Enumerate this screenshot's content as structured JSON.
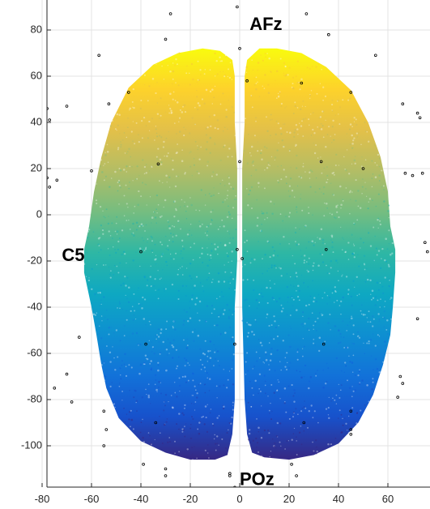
{
  "chart_data": {
    "type": "scatter",
    "title": "",
    "xlabel": "",
    "ylabel": "",
    "xlim": [
      -88,
      80
    ],
    "ylim": [
      -120,
      90
    ],
    "x_ticks": [
      "-80",
      "-60",
      "-40",
      "-20",
      "0",
      "20",
      "40",
      "60",
      "80"
    ],
    "y_ticks": [
      "80",
      "60",
      "40",
      "20",
      "0",
      "-20",
      "-40",
      "-60",
      "-80",
      "-100"
    ],
    "grid": true,
    "colormap": "parula",
    "colormap_stops": [
      "#352a87",
      "#0f5cdd",
      "#1481d6",
      "#06a4ca",
      "#2eb7a4",
      "#87bf77",
      "#d1bb59",
      "#fec832",
      "#f9fb0e"
    ],
    "colormap_range": [
      -105,
      72
    ],
    "marker_color": "#000000",
    "electrode_labels": [
      {
        "text": "AFz",
        "x": 4,
        "y": 82
      },
      {
        "text": "C5",
        "x": -72,
        "y": -18
      },
      {
        "text": "POz",
        "x": 0,
        "y": -115
      }
    ],
    "sensors": [
      [
        -1,
        90
      ],
      [
        -28,
        87
      ],
      [
        -30,
        76
      ],
      [
        -57,
        69
      ],
      [
        27,
        87
      ],
      [
        36,
        78
      ],
      [
        -45,
        53
      ],
      [
        -78,
        46
      ],
      [
        -77,
        41
      ],
      [
        -70,
        47
      ],
      [
        55,
        69
      ],
      [
        45,
        53
      ],
      [
        66,
        48
      ],
      [
        72,
        44
      ],
      [
        73,
        42
      ],
      [
        -60,
        19
      ],
      [
        -78,
        16
      ],
      [
        -77,
        12
      ],
      [
        -74,
        15
      ],
      [
        67,
        18
      ],
      [
        70,
        17
      ],
      [
        74,
        18
      ],
      [
        -84,
        -16
      ],
      [
        -83,
        -13
      ],
      [
        -40,
        -16
      ],
      [
        -1,
        -15
      ],
      [
        35,
        -15
      ],
      [
        75,
        -12
      ],
      [
        78,
        -15
      ],
      [
        76,
        -16
      ],
      [
        -91,
        -45
      ],
      [
        -86,
        -45
      ],
      [
        -82,
        -49
      ],
      [
        -65,
        -53
      ],
      [
        65,
        -70
      ],
      [
        66,
        -73
      ],
      [
        72,
        -45
      ],
      [
        82,
        -45
      ],
      [
        -38,
        -56
      ],
      [
        34,
        -56
      ],
      [
        -75,
        -75
      ],
      [
        -70,
        -69
      ],
      [
        -68,
        -81
      ],
      [
        64,
        -79
      ],
      [
        45,
        -85
      ],
      [
        -55,
        -85
      ],
      [
        -54,
        -93
      ],
      [
        -55,
        -100
      ],
      [
        -34,
        -90
      ],
      [
        26,
        -90
      ],
      [
        45,
        -93
      ],
      [
        45,
        -95
      ],
      [
        -39,
        -108
      ],
      [
        -30,
        -110
      ],
      [
        -30,
        -113
      ],
      [
        21,
        -108
      ],
      [
        -4,
        -112
      ],
      [
        -4,
        -113
      ],
      [
        23,
        -113
      ],
      [
        -2,
        -118
      ],
      [
        -2,
        -56
      ],
      [
        1,
        -19
      ],
      [
        -33,
        22
      ],
      [
        33,
        23
      ],
      [
        0,
        23
      ],
      [
        25,
        57
      ],
      [
        3,
        58
      ],
      [
        0,
        72
      ],
      [
        50,
        20
      ],
      [
        -53,
        48
      ]
    ]
  }
}
